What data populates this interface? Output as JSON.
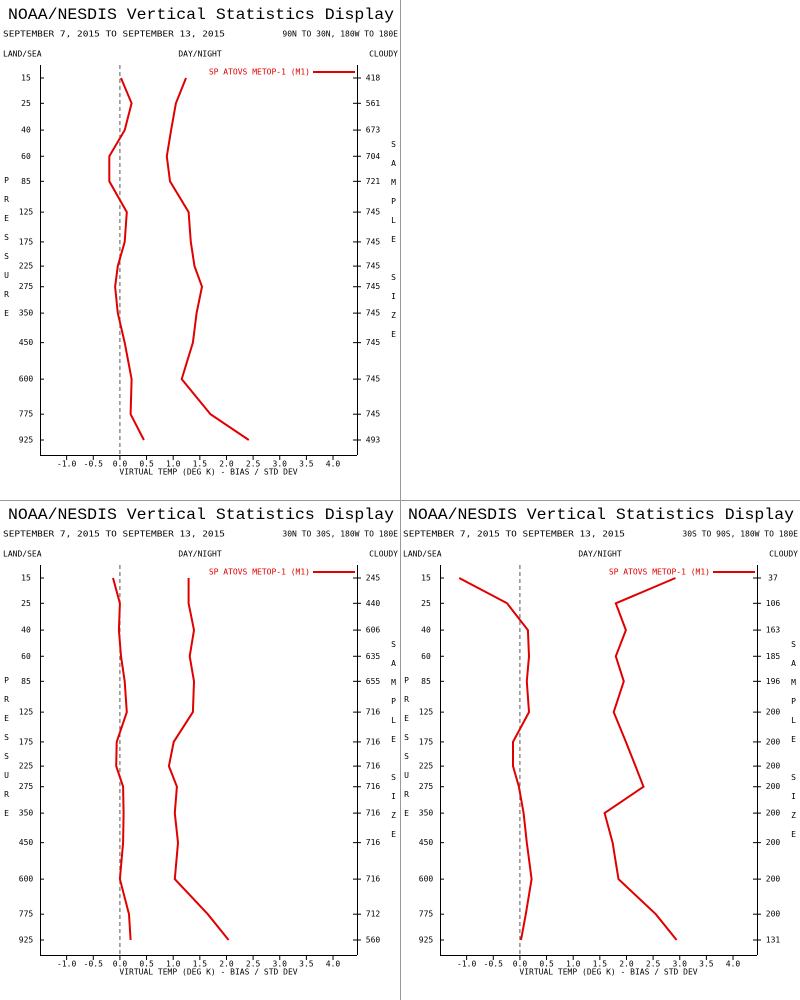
{
  "chart_data": [
    {
      "type": "line",
      "title": "NOAA/NESDIS Vertical Statistics Display",
      "subtitle": "SEPTEMBER 7, 2015 TO SEPTEMBER 13, 2015",
      "region": "90N TO 30N, 180W TO 180E",
      "left_header": "LAND/SEA",
      "center_header": "DAY/NIGHT",
      "right_header": "CLOUDY",
      "ylabel": "PRESSURE",
      "y2label": "SAMPLE SIZE",
      "xlabel": "VIRTUAL TEMP (DEG K) - BIAS / STD DEV",
      "categories": [
        15,
        25,
        40,
        60,
        85,
        125,
        175,
        225,
        275,
        350,
        450,
        600,
        775,
        925
      ],
      "sample_size": [
        418,
        561,
        673,
        704,
        721,
        745,
        745,
        745,
        745,
        745,
        745,
        745,
        745,
        493
      ],
      "series": [
        {
          "name": "SP ATOVS METOP-1 (M1)",
          "color": "#e00000",
          "bias": [
            0.02,
            0.22,
            0.09,
            -0.2,
            -0.2,
            0.13,
            0.09,
            -0.04,
            -0.09,
            -0.04,
            0.09,
            0.22,
            0.2,
            0.45
          ],
          "std_dev": [
            1.24,
            1.05,
            0.96,
            0.88,
            0.94,
            1.29,
            1.33,
            1.4,
            1.54,
            1.44,
            1.37,
            1.16,
            1.7,
            2.42
          ]
        }
      ],
      "xlim": [
        -1.5,
        4.45
      ],
      "xticks": [
        {
          "value": -1,
          "label": "-1.0"
        },
        {
          "value": -0.5,
          "label": "-0.5"
        },
        {
          "value": 0,
          "label": "0.0"
        },
        {
          "value": 0.5,
          "label": "0.5"
        },
        {
          "value": 1,
          "label": "1.0"
        },
        {
          "value": 1.5,
          "label": "1.5"
        },
        {
          "value": 2,
          "label": "2.0"
        },
        {
          "value": 2.5,
          "label": "2.5"
        },
        {
          "value": 3,
          "label": "3.0"
        },
        {
          "value": 3.5,
          "label": "3.5"
        },
        {
          "value": 4,
          "label": "4.0"
        }
      ]
    },
    {
      "type": "line",
      "title": "NOAA/NESDIS Vertical Statistics Display",
      "subtitle": "SEPTEMBER 7, 2015 TO SEPTEMBER 13, 2015",
      "region": "30N TO 30S, 180W TO 180E",
      "left_header": "LAND/SEA",
      "center_header": "DAY/NIGHT",
      "right_header": "CLOUDY",
      "ylabel": "PRESSURE",
      "y2label": "SAMPLE SIZE",
      "xlabel": "VIRTUAL TEMP (DEG K) - BIAS / STD DEV",
      "categories": [
        15,
        25,
        40,
        60,
        85,
        125,
        175,
        225,
        275,
        350,
        450,
        600,
        775,
        925
      ],
      "sample_size": [
        245,
        440,
        606,
        635,
        655,
        716,
        716,
        716,
        716,
        716,
        716,
        716,
        712,
        560
      ],
      "series": [
        {
          "name": "SP ATOVS METOP-1 (M1)",
          "color": "#e00000",
          "bias": [
            -0.13,
            0,
            -0.02,
            0.02,
            0.09,
            0.13,
            -0.06,
            -0.07,
            0.06,
            0.07,
            0.06,
            0,
            0.17,
            0.2
          ],
          "std_dev": [
            1.29,
            1.29,
            1.39,
            1.31,
            1.39,
            1.37,
            1.01,
            0.92,
            1.07,
            1.03,
            1.09,
            1.03,
            1.65,
            2.04
          ]
        }
      ],
      "xlim": [
        -1.5,
        4.45
      ],
      "xticks": [
        {
          "value": -1,
          "label": "-1.0"
        },
        {
          "value": -0.5,
          "label": "-0.5"
        },
        {
          "value": 0,
          "label": "0.0"
        },
        {
          "value": 0.5,
          "label": "0.5"
        },
        {
          "value": 1,
          "label": "1.0"
        },
        {
          "value": 1.5,
          "label": "1.5"
        },
        {
          "value": 2,
          "label": "2.0"
        },
        {
          "value": 2.5,
          "label": "2.5"
        },
        {
          "value": 3,
          "label": "3.0"
        },
        {
          "value": 3.5,
          "label": "3.5"
        },
        {
          "value": 4,
          "label": "4.0"
        }
      ]
    },
    {
      "type": "line",
      "title": "NOAA/NESDIS Vertical Statistics Display",
      "subtitle": "SEPTEMBER 7, 2015 TO SEPTEMBER 13, 2015",
      "region": "30S TO 90S, 180W TO 180E",
      "left_header": "LAND/SEA",
      "center_header": "DAY/NIGHT",
      "right_header": "CLOUDY",
      "ylabel": "PRESSURE",
      "y2label": "SAMPLE SIZE",
      "xlabel": "VIRTUAL TEMP (DEG K) - BIAS / STD DEV",
      "categories": [
        15,
        25,
        40,
        60,
        85,
        125,
        175,
        225,
        275,
        350,
        450,
        600,
        775,
        925
      ],
      "sample_size": [
        37,
        106,
        163,
        185,
        196,
        200,
        200,
        200,
        200,
        200,
        200,
        200,
        200,
        131
      ],
      "series": [
        {
          "name": "SP ATOVS METOP-1 (M1)",
          "color": "#e00000",
          "bias": [
            -1.14,
            -0.24,
            0.15,
            0.17,
            0.13,
            0.17,
            -0.13,
            -0.13,
            -0.02,
            0.07,
            0.13,
            0.22,
            0.11,
            0.02
          ],
          "std_dev": [
            2.92,
            1.8,
            1.99,
            1.8,
            1.95,
            1.76,
            1.99,
            2.17,
            2.32,
            1.59,
            1.74,
            1.85,
            2.55,
            2.94
          ]
        }
      ],
      "xlim": [
        -1.5,
        4.45
      ],
      "xticks": [
        {
          "value": -1,
          "label": "-1.0"
        },
        {
          "value": -0.5,
          "label": "-0.5"
        },
        {
          "value": 0,
          "label": "0.0"
        },
        {
          "value": 0.5,
          "label": "0.5"
        },
        {
          "value": 1,
          "label": "1.0"
        },
        {
          "value": 1.5,
          "label": "1.5"
        },
        {
          "value": 2,
          "label": "2.0"
        },
        {
          "value": 2.5,
          "label": "2.5"
        },
        {
          "value": 3,
          "label": "3.0"
        },
        {
          "value": 3.5,
          "label": "3.5"
        },
        {
          "value": 4,
          "label": "4.0"
        }
      ]
    }
  ]
}
